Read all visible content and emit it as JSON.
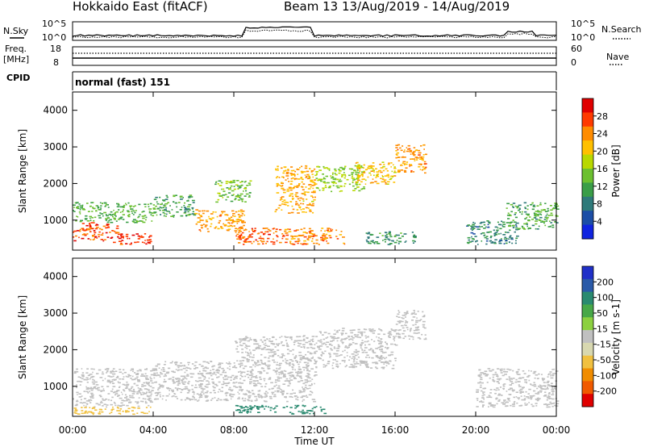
{
  "header": {
    "title": "Hokkaido East (fitACF)",
    "beam_info": "Beam 13 13/Aug/2019 - 14/Aug/2019"
  },
  "noise_panel": {
    "left_label": "N.Sky",
    "right_label": "N.Search",
    "left_top": "10^5",
    "left_bottom": "10^0",
    "right_top": "10^5",
    "right_bottom": "10^0"
  },
  "freq_panel": {
    "left_label_1": "Freq.",
    "left_label_2": "[MHz]",
    "right_label": "Nave",
    "left_top": "18",
    "left_bottom": "8",
    "right_top": "60",
    "right_bottom": "0"
  },
  "cpid_panel": {
    "label": "CPID",
    "value": "normal (fast) 151"
  },
  "power_colorbar": {
    "label": "Power [dB]",
    "ticks": [
      "28",
      "24",
      "20",
      "16",
      "12",
      "8",
      "4"
    ],
    "colors": [
      "#e00000",
      "#ff3a00",
      "#ff8c00",
      "#ffc000",
      "#b8d800",
      "#6cc030",
      "#3a9e48",
      "#2f7a7a",
      "#1c4ea6",
      "#1024e0"
    ]
  },
  "velocity_colorbar": {
    "label": "Velocity [m s-1]",
    "ticks": [
      "200",
      "100",
      "50",
      "15",
      "-15",
      "-50",
      "-100",
      "-200"
    ],
    "colors": [
      "#2030c8",
      "#2a5aa8",
      "#2a8a70",
      "#48a848",
      "#8cd040",
      "#c0c0c0",
      "#d8d8b0",
      "#f0c040",
      "#f08c00",
      "#f05a00",
      "#e00000"
    ]
  },
  "chart_data": [
    {
      "type": "heatmap",
      "title": "Power",
      "ylabel": "Slant Range [km]",
      "ylim": [
        180,
        4500
      ],
      "yticks": [
        1000,
        2000,
        3000,
        4000
      ],
      "xlim": [
        0,
        24
      ],
      "regions": [
        {
          "t0": 0.0,
          "t1": 2.2,
          "r0": 450,
          "r1": 950,
          "value": 27
        },
        {
          "t0": 2.0,
          "t1": 3.9,
          "r0": 350,
          "r1": 650,
          "value": 28
        },
        {
          "t0": 0.0,
          "t1": 4.0,
          "r0": 950,
          "r1": 1500,
          "value": 13
        },
        {
          "t0": 4.0,
          "t1": 6.0,
          "r0": 1100,
          "r1": 1700,
          "value": 11
        },
        {
          "t0": 6.0,
          "t1": 8.5,
          "r0": 700,
          "r1": 1300,
          "value": 23
        },
        {
          "t0": 8.0,
          "t1": 10.5,
          "r0": 350,
          "r1": 800,
          "value": 26
        },
        {
          "t0": 7.0,
          "t1": 8.8,
          "r0": 1500,
          "r1": 2100,
          "value": 14
        },
        {
          "t0": 10.0,
          "t1": 12.0,
          "r0": 1200,
          "r1": 2500,
          "value": 22
        },
        {
          "t0": 10.5,
          "t1": 13.5,
          "r0": 350,
          "r1": 800,
          "value": 24
        },
        {
          "t0": 12.0,
          "t1": 14.5,
          "r0": 1800,
          "r1": 2500,
          "value": 16
        },
        {
          "t0": 14.0,
          "t1": 16.0,
          "r0": 2000,
          "r1": 2600,
          "value": 21
        },
        {
          "t0": 16.0,
          "t1": 17.5,
          "r0": 2300,
          "r1": 3100,
          "value": 23
        },
        {
          "t0": 14.5,
          "t1": 17.0,
          "r0": 350,
          "r1": 700,
          "value": 10
        },
        {
          "t0": 19.5,
          "t1": 22.0,
          "r0": 350,
          "r1": 1000,
          "value": 9
        },
        {
          "t0": 21.5,
          "t1": 24.0,
          "r0": 750,
          "r1": 1500,
          "value": 12
        }
      ]
    },
    {
      "type": "heatmap",
      "title": "Velocity",
      "ylabel": "Slant Range [km]",
      "ylim": [
        180,
        4500
      ],
      "yticks": [
        1000,
        2000,
        3000,
        4000
      ],
      "xlim": [
        0,
        24
      ],
      "xlabel": "Time UT",
      "xticks": [
        "00:00",
        "04:00",
        "08:00",
        "12:00",
        "16:00",
        "20:00",
        "00:00"
      ],
      "regions": [
        {
          "t0": 0.0,
          "t1": 4.0,
          "r0": 450,
          "r1": 1500,
          "value": 0
        },
        {
          "t0": 4.0,
          "t1": 8.0,
          "r0": 600,
          "r1": 1700,
          "value": 0
        },
        {
          "t0": 8.0,
          "t1": 12.0,
          "r0": 600,
          "r1": 2400,
          "value": 0
        },
        {
          "t0": 8.0,
          "t1": 12.5,
          "r0": 250,
          "r1": 500,
          "value": 60
        },
        {
          "t0": 12.0,
          "t1": 16.0,
          "r0": 1500,
          "r1": 2600,
          "value": 0
        },
        {
          "t0": 16.0,
          "t1": 17.5,
          "r0": 2300,
          "r1": 3100,
          "value": -10
        },
        {
          "t0": 20.0,
          "t1": 24.0,
          "r0": 450,
          "r1": 1500,
          "value": 0
        },
        {
          "t0": 0.0,
          "t1": 4.0,
          "r0": 250,
          "r1": 450,
          "value": -40
        }
      ]
    }
  ]
}
